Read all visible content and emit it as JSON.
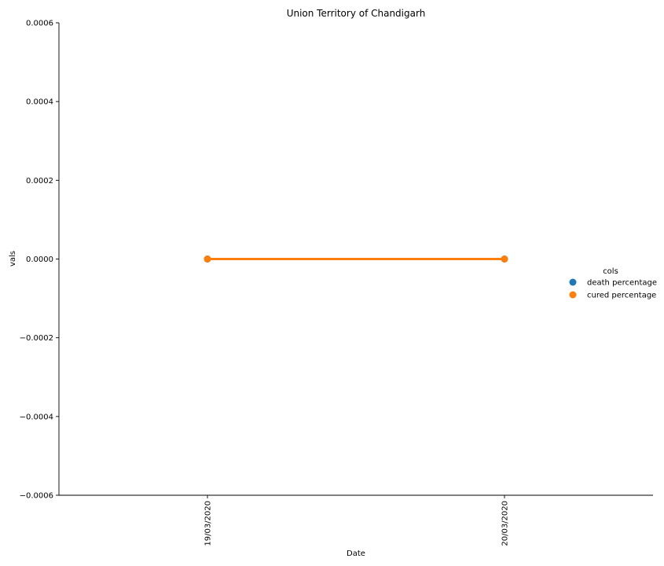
{
  "chart_data": {
    "type": "line",
    "title": "Union Territory of Chandigarh",
    "xlabel": "Date",
    "ylabel": "vals",
    "categories": [
      "19/03/2020",
      "20/03/2020"
    ],
    "ylim": [
      -0.0006,
      0.0006
    ],
    "yticks": [
      0.0006,
      0.0004,
      0.0002,
      0.0,
      -0.0002,
      -0.0004,
      -0.0006
    ],
    "ytick_labels": [
      "0.0006",
      "0.0004",
      "0.0002",
      "0.0000",
      "−0.0002",
      "−0.0004",
      "−0.0006"
    ],
    "grid": false,
    "legend": {
      "title": "cols",
      "placement": "right"
    },
    "series": [
      {
        "name": "death percentage",
        "values": [
          0.0,
          0.0
        ],
        "color": "#1f77b4"
      },
      {
        "name": "cured percentage",
        "values": [
          0.0,
          0.0
        ],
        "color": "#ff7f0e"
      }
    ]
  }
}
